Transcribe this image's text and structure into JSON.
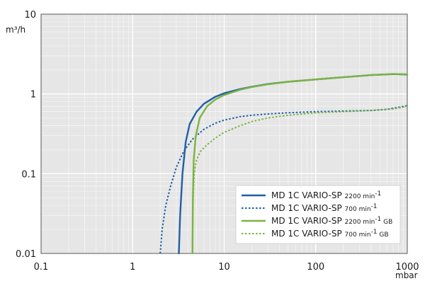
{
  "chart_data": {
    "type": "line",
    "title": "",
    "xlabel": "mbar",
    "ylabel": "m³/h",
    "x_scale": "log",
    "y_scale": "log",
    "xlim": [
      0.1,
      1000
    ],
    "ylim": [
      0.01,
      10
    ],
    "grid": true,
    "legend_position": "bottom-right",
    "x_ticks": [
      {
        "value": 0.1,
        "label": "0.1"
      },
      {
        "value": 1,
        "label": "1"
      },
      {
        "value": 10,
        "label": "10"
      },
      {
        "value": 100,
        "label": "100"
      },
      {
        "value": 1000,
        "label": "1000"
      }
    ],
    "y_ticks": [
      {
        "value": 0.01,
        "label": "0.01"
      },
      {
        "value": 0.1,
        "label": "0.1"
      },
      {
        "value": 1,
        "label": "1"
      },
      {
        "value": 10,
        "label": "10"
      }
    ],
    "series": [
      {
        "name": "MD 1C VARIO-SP 2200 min⁻¹",
        "legend_main": "MD 1C VARIO-SP",
        "legend_sub": "2200 min",
        "legend_sup": "-1",
        "legend_suffix": "",
        "color": "#1f5fa6",
        "dashed": false,
        "points": [
          [
            3.2,
            0.01
          ],
          [
            3.3,
            0.03
          ],
          [
            3.5,
            0.1
          ],
          [
            3.8,
            0.25
          ],
          [
            4.2,
            0.42
          ],
          [
            5,
            0.6
          ],
          [
            6,
            0.75
          ],
          [
            8,
            0.92
          ],
          [
            10,
            1.02
          ],
          [
            15,
            1.15
          ],
          [
            20,
            1.23
          ],
          [
            30,
            1.33
          ],
          [
            50,
            1.42
          ],
          [
            100,
            1.52
          ],
          [
            200,
            1.62
          ],
          [
            400,
            1.72
          ],
          [
            700,
            1.77
          ],
          [
            1000,
            1.75
          ]
        ]
      },
      {
        "name": "MD 1C VARIO-SP 700 min⁻¹",
        "legend_main": "MD 1C VARIO-SP",
        "legend_sub": "700 min",
        "legend_sup": "-1",
        "legend_suffix": "",
        "color": "#1f5fa6",
        "dashed": true,
        "points": [
          [
            2,
            0.01
          ],
          [
            2.1,
            0.02
          ],
          [
            2.3,
            0.04
          ],
          [
            2.6,
            0.07
          ],
          [
            3,
            0.12
          ],
          [
            3.6,
            0.19
          ],
          [
            4.5,
            0.27
          ],
          [
            6,
            0.36
          ],
          [
            8,
            0.43
          ],
          [
            10,
            0.47
          ],
          [
            15,
            0.52
          ],
          [
            20,
            0.54
          ],
          [
            30,
            0.56
          ],
          [
            50,
            0.58
          ],
          [
            100,
            0.6
          ],
          [
            200,
            0.61
          ],
          [
            400,
            0.62
          ],
          [
            600,
            0.64
          ],
          [
            1000,
            0.71
          ]
        ]
      },
      {
        "name": "MD 1C VARIO-SP 2200 min⁻¹ GB",
        "legend_main": "MD 1C VARIO-SP",
        "legend_sub": "2200 min",
        "legend_sup": "-1",
        "legend_suffix": "GB",
        "color": "#7cb342",
        "dashed": false,
        "points": [
          [
            4.5,
            0.01
          ],
          [
            4.55,
            0.05
          ],
          [
            4.65,
            0.15
          ],
          [
            4.9,
            0.3
          ],
          [
            5.4,
            0.5
          ],
          [
            6.5,
            0.7
          ],
          [
            8,
            0.85
          ],
          [
            10,
            0.97
          ],
          [
            15,
            1.13
          ],
          [
            20,
            1.22
          ],
          [
            30,
            1.32
          ],
          [
            50,
            1.42
          ],
          [
            100,
            1.52
          ],
          [
            200,
            1.62
          ],
          [
            400,
            1.72
          ],
          [
            700,
            1.78
          ],
          [
            1000,
            1.76
          ]
        ]
      },
      {
        "name": "MD 1C VARIO-SP 700 min⁻¹ GB",
        "legend_main": "MD 1C VARIO-SP",
        "legend_sub": "700 min",
        "legend_sup": "-1",
        "legend_suffix": "GB",
        "color": "#7cb342",
        "dashed": true,
        "points": [
          [
            4.5,
            0.01
          ],
          [
            4.55,
            0.04
          ],
          [
            4.7,
            0.1
          ],
          [
            5,
            0.15
          ],
          [
            5.5,
            0.19
          ],
          [
            6.5,
            0.23
          ],
          [
            8,
            0.28
          ],
          [
            10,
            0.33
          ],
          [
            15,
            0.4
          ],
          [
            20,
            0.45
          ],
          [
            30,
            0.5
          ],
          [
            50,
            0.54
          ],
          [
            100,
            0.58
          ],
          [
            200,
            0.6
          ],
          [
            400,
            0.62
          ],
          [
            700,
            0.65
          ],
          [
            1000,
            0.7
          ]
        ]
      }
    ]
  }
}
